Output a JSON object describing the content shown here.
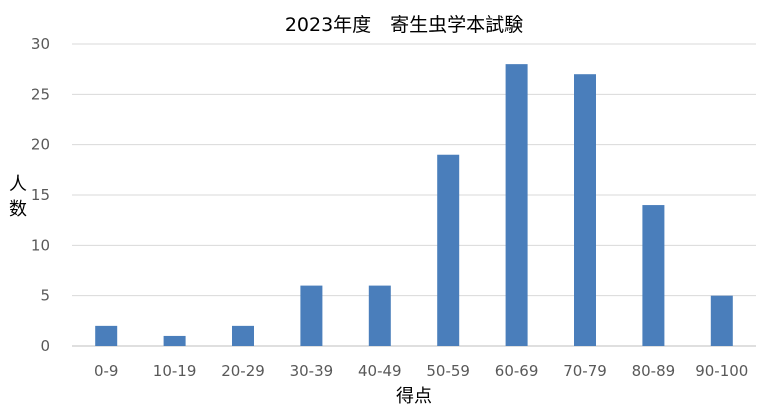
{
  "chart_data": {
    "type": "bar",
    "title": "2023年度　寄生虫学本試験",
    "xlabel": "得点",
    "ylabel": "人数",
    "categories": [
      "0-9",
      "10-19",
      "20-29",
      "30-39",
      "40-49",
      "50-59",
      "60-69",
      "70-79",
      "80-89",
      "90-100"
    ],
    "values": [
      2,
      1,
      2,
      6,
      6,
      19,
      28,
      27,
      14,
      5
    ],
    "ylim": [
      0,
      30
    ],
    "yticks": [
      "0",
      "5",
      "10",
      "15",
      "20",
      "25",
      "30"
    ],
    "grid": true,
    "legend": "none",
    "bar_color": "#4a7ebb"
  }
}
